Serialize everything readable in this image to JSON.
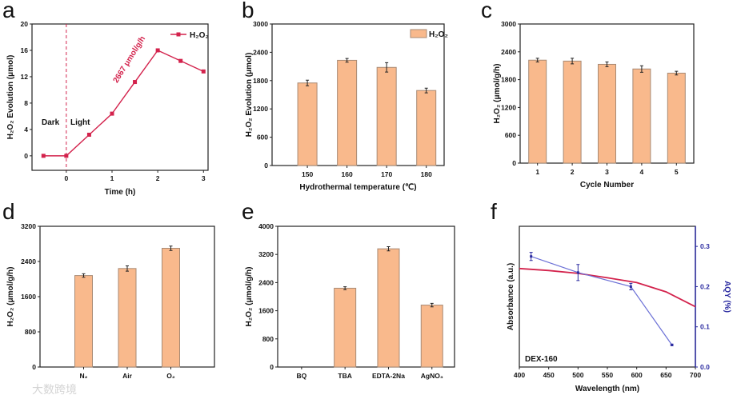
{
  "watermark": "大数跨境",
  "colors": {
    "line": "#d3224c",
    "bar_fill": "#f9b98c",
    "bar_stroke": "#a88a74",
    "aqy": "#6b70d6",
    "right_axis": "#2a2aa0"
  },
  "chart_data": [
    {
      "panel": "a",
      "type": "line",
      "xlabel": "Time (h)",
      "ylabel": "H₂O₂ Evolution (μmol)",
      "xlim": [
        -0.75,
        3.1
      ],
      "ylim": [
        -2.2,
        20
      ],
      "xticks": [
        0,
        1,
        2,
        3
      ],
      "yticks": [
        0,
        4,
        8,
        12,
        16,
        20
      ],
      "series": [
        {
          "name": "H₂O₂",
          "x": [
            -0.5,
            0,
            0.5,
            1,
            1.5,
            2,
            2.5,
            3
          ],
          "y": [
            0,
            0,
            3.2,
            6.4,
            11.2,
            16,
            14.4,
            12.8
          ]
        }
      ],
      "legend": "top-right",
      "annotations": {
        "dark": "Dark",
        "light": "Light",
        "rate": "2667 μmol/g/h"
      },
      "divider_x": 0
    },
    {
      "panel": "b",
      "type": "bar",
      "xlabel": "Hydrothermal temperature (℃)",
      "ylabel": "H₂O₂ Evolution (μmol)",
      "categories": [
        "150",
        "160",
        "170",
        "180"
      ],
      "values": [
        1750,
        2230,
        2080,
        1590
      ],
      "errors": [
        60,
        40,
        100,
        50
      ],
      "ylim": [
        0,
        3000
      ],
      "yticks": [
        0,
        600,
        1200,
        1800,
        2400,
        3000
      ],
      "legend_label": "H₂O₂",
      "legend": "top-right"
    },
    {
      "panel": "c",
      "type": "bar",
      "xlabel": "Cycle Number",
      "ylabel": "H₂O₂ (μmol/g/h)",
      "categories": [
        "1",
        "2",
        "3",
        "4",
        "5"
      ],
      "values": [
        2220,
        2200,
        2130,
        2030,
        1940
      ],
      "errors": [
        40,
        60,
        50,
        70,
        40
      ],
      "ylim": [
        0,
        3000
      ],
      "yticks": [
        0,
        600,
        1200,
        1800,
        2400,
        3000
      ]
    },
    {
      "panel": "d",
      "type": "bar",
      "xlabel": "",
      "ylabel": "H₂O₂ (μmol/g/h)",
      "categories": [
        "N₂",
        "Air",
        "O₂"
      ],
      "values": [
        2080,
        2240,
        2700
      ],
      "errors": [
        40,
        60,
        50
      ],
      "ylim": [
        0,
        3200
      ],
      "yticks": [
        0,
        800,
        1600,
        2400,
        3200
      ]
    },
    {
      "panel": "e",
      "type": "bar",
      "xlabel": "",
      "ylabel": "H₂O₂ (μmol/g/h)",
      "categories": [
        "BQ",
        "TBA",
        "EDTA-2Na",
        "AgNO₃"
      ],
      "values": [
        0,
        2240,
        3360,
        1760
      ],
      "errors": [
        0,
        40,
        60,
        50
      ],
      "ylim": [
        0,
        4000
      ],
      "yticks": [
        0,
        800,
        1600,
        2400,
        3200,
        4000
      ]
    },
    {
      "panel": "f",
      "type": "line",
      "xlabel": "Wavelength (nm)",
      "ylabel": "Absorbance (a.u.)",
      "y2label": "AQY (%)",
      "xlim": [
        400,
        700
      ],
      "xticks": [
        400,
        450,
        500,
        550,
        600,
        650,
        700
      ],
      "y2lim": [
        0,
        0.35
      ],
      "y2ticks": [
        "0.0",
        "0.1",
        "0.2",
        "0.3"
      ],
      "absorbance": {
        "x": [
          400,
          450,
          500,
          550,
          600,
          650,
          700
        ],
        "y_on_y2_scale": [
          0.245,
          0.24,
          0.233,
          0.222,
          0.21,
          0.187,
          0.15
        ]
      },
      "aqy": {
        "x": [
          420,
          500,
          590,
          660
        ],
        "y": [
          0.275,
          0.235,
          0.2,
          0.055
        ],
        "errors": [
          0.01,
          0.02,
          0.008,
          0.002
        ]
      },
      "sample_label": "DEX-160"
    }
  ]
}
